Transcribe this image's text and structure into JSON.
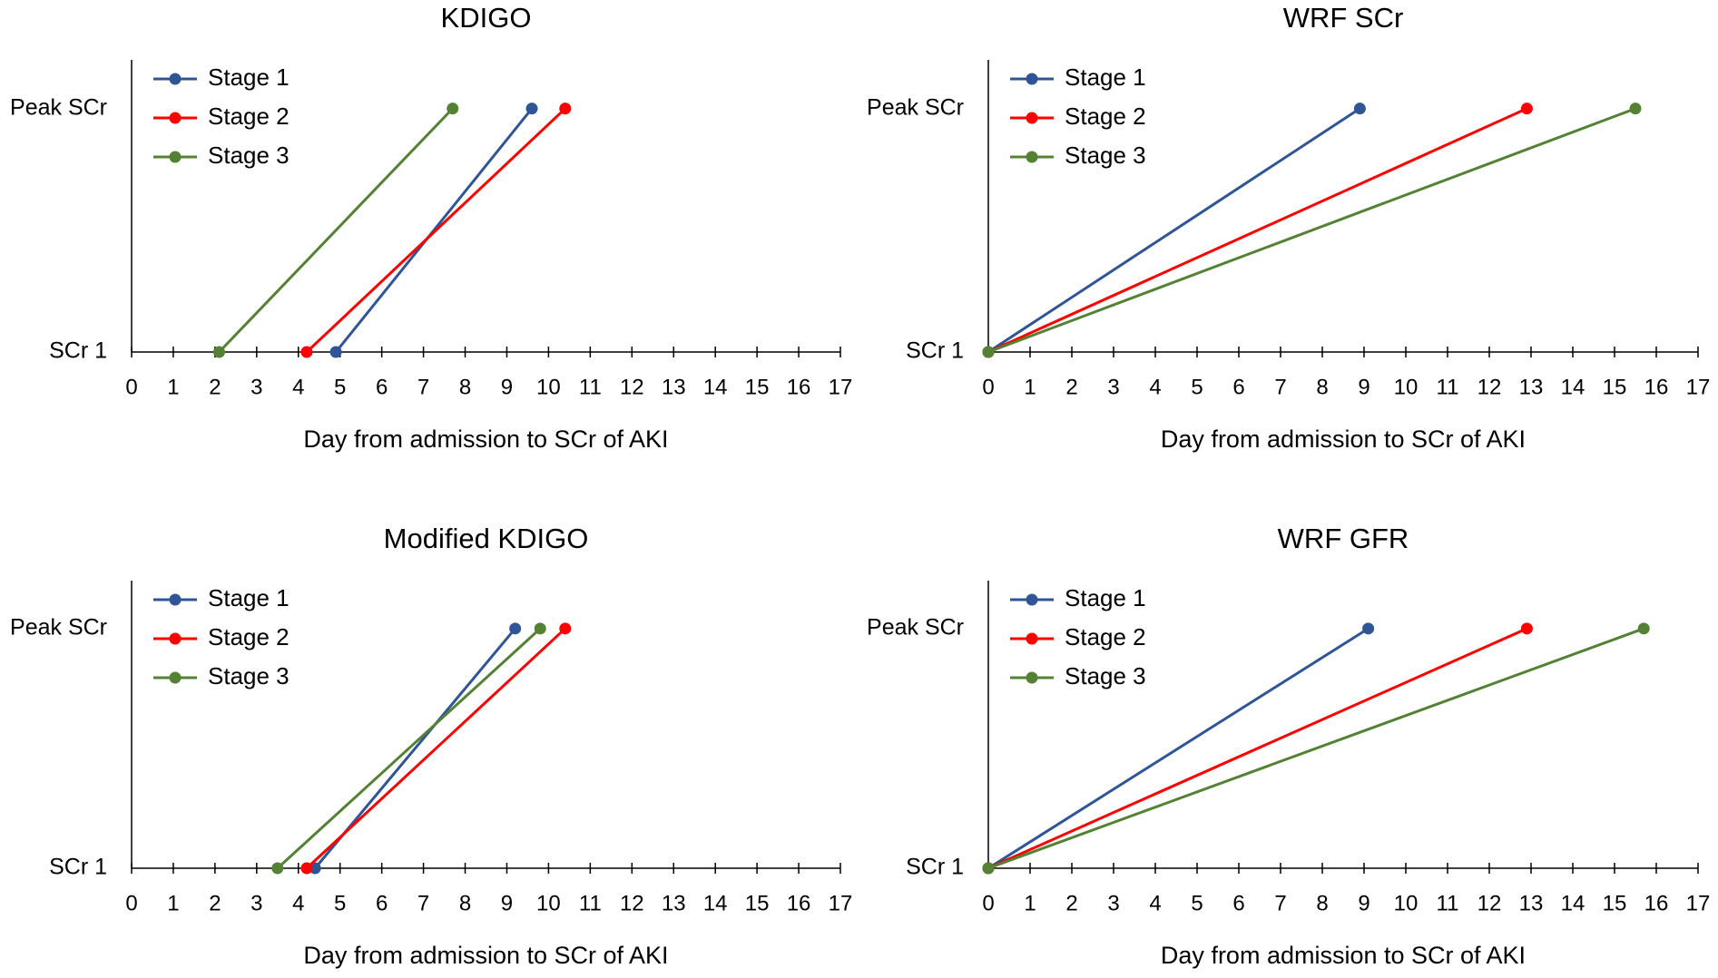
{
  "chart_data": [
    {
      "type": "line",
      "title": "KDIGO",
      "xlabel": "Day from admission to SCr of AKI",
      "xlim": [
        0,
        17
      ],
      "xticks": [
        0,
        1,
        2,
        3,
        4,
        5,
        6,
        7,
        8,
        9,
        10,
        11,
        12,
        13,
        14,
        15,
        16,
        17
      ],
      "ylim": [
        0,
        1.2
      ],
      "yticks": [
        {
          "value": 0,
          "label": "SCr 1"
        },
        {
          "value": 1,
          "label": "Peak SCr"
        }
      ],
      "grid": false,
      "legend": "upper left",
      "series": [
        {
          "name": "Stage 1",
          "color": "#2f5597",
          "x": [
            4.9,
            9.6
          ],
          "values": [
            0,
            1
          ]
        },
        {
          "name": "Stage 2",
          "color": "#ff0000",
          "x": [
            4.2,
            10.4
          ],
          "values": [
            0,
            1
          ]
        },
        {
          "name": "Stage 3",
          "color": "#548235",
          "x": [
            2.1,
            7.7
          ],
          "values": [
            0,
            1
          ]
        }
      ]
    },
    {
      "type": "line",
      "title": "WRF SCr",
      "xlabel": "Day from admission to SCr of AKI",
      "xlim": [
        0,
        17
      ],
      "xticks": [
        0,
        1,
        2,
        3,
        4,
        5,
        6,
        7,
        8,
        9,
        10,
        11,
        12,
        13,
        14,
        15,
        16,
        17
      ],
      "ylim": [
        0,
        1.2
      ],
      "yticks": [
        {
          "value": 0,
          "label": "SCr 1"
        },
        {
          "value": 1,
          "label": "Peak SCr"
        }
      ],
      "grid": false,
      "legend": "upper left",
      "series": [
        {
          "name": "Stage 1",
          "color": "#2f5597",
          "x": [
            0,
            8.9
          ],
          "values": [
            0,
            1
          ]
        },
        {
          "name": "Stage 2",
          "color": "#ff0000",
          "x": [
            0,
            12.9
          ],
          "values": [
            0,
            1
          ]
        },
        {
          "name": "Stage 3",
          "color": "#548235",
          "x": [
            0,
            15.5
          ],
          "values": [
            0,
            1
          ]
        }
      ]
    },
    {
      "type": "line",
      "title": "Modified KDIGO",
      "xlabel": "Day from admission to SCr of AKI",
      "xlim": [
        0,
        17
      ],
      "xticks": [
        0,
        1,
        2,
        3,
        4,
        5,
        6,
        7,
        8,
        9,
        10,
        11,
        12,
        13,
        14,
        15,
        16,
        17
      ],
      "ylim": [
        0,
        1.2
      ],
      "yticks": [
        {
          "value": 0,
          "label": "SCr 1"
        },
        {
          "value": 1,
          "label": "Peak SCr"
        }
      ],
      "grid": false,
      "legend": "upper left",
      "series": [
        {
          "name": "Stage 1",
          "color": "#2f5597",
          "x": [
            4.4,
            9.2
          ],
          "values": [
            0,
            1
          ]
        },
        {
          "name": "Stage 2",
          "color": "#ff0000",
          "x": [
            4.2,
            10.4
          ],
          "values": [
            0,
            1
          ]
        },
        {
          "name": "Stage 3",
          "color": "#548235",
          "x": [
            3.5,
            9.8
          ],
          "values": [
            0,
            1
          ]
        }
      ]
    },
    {
      "type": "line",
      "title": "WRF GFR",
      "xlabel": "Day from admission to SCr of AKI",
      "xlim": [
        0,
        17
      ],
      "xticks": [
        0,
        1,
        2,
        3,
        4,
        5,
        6,
        7,
        8,
        9,
        10,
        11,
        12,
        13,
        14,
        15,
        16,
        17
      ],
      "ylim": [
        0,
        1.2
      ],
      "yticks": [
        {
          "value": 0,
          "label": "SCr 1"
        },
        {
          "value": 1,
          "label": "Peak SCr"
        }
      ],
      "grid": false,
      "legend": "upper left",
      "series": [
        {
          "name": "Stage 1",
          "color": "#2f5597",
          "x": [
            0,
            9.1
          ],
          "values": [
            0,
            1
          ]
        },
        {
          "name": "Stage 2",
          "color": "#ff0000",
          "x": [
            0,
            12.9
          ],
          "values": [
            0,
            1
          ]
        },
        {
          "name": "Stage 3",
          "color": "#548235",
          "x": [
            0,
            15.7
          ],
          "values": [
            0,
            1
          ]
        }
      ]
    }
  ]
}
